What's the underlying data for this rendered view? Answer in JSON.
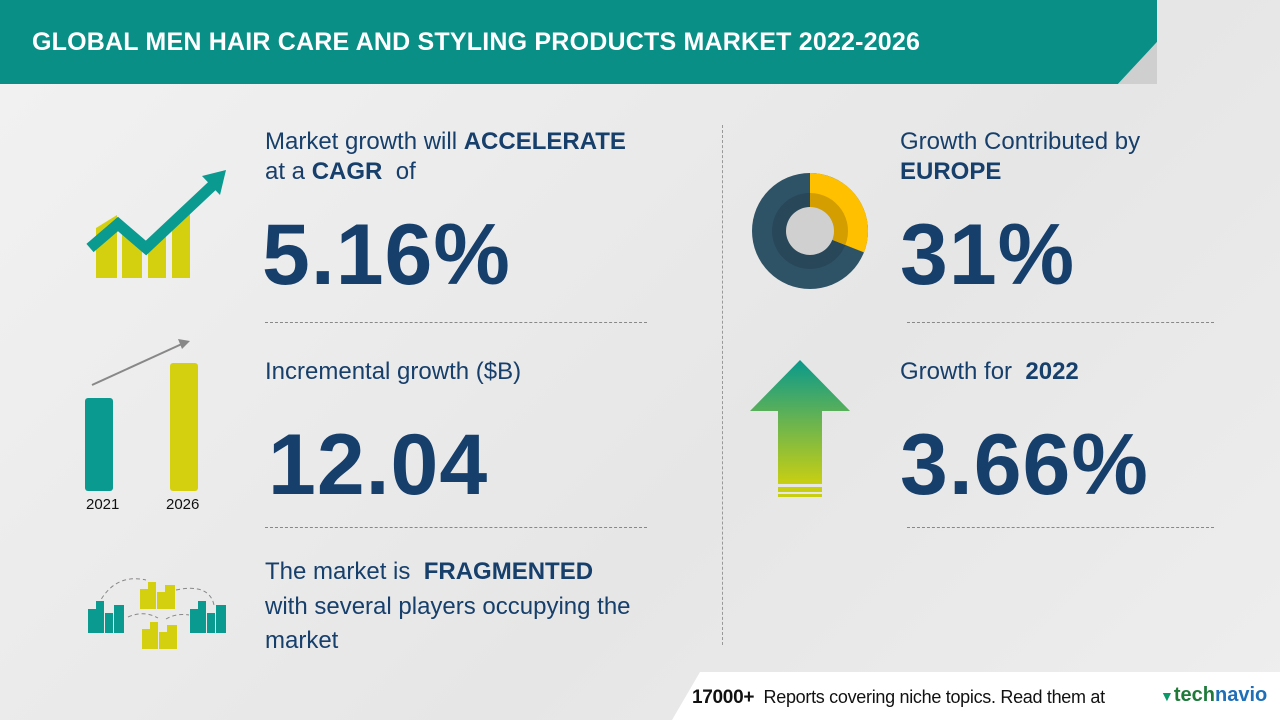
{
  "header": {
    "title": "GLOBAL MEN HAIR CARE AND STYLING PRODUCTS MARKET 2022-2026"
  },
  "cagr": {
    "line1_prefix": "Market growth will",
    "line1_bold": "ACCELERATE",
    "line2_prefix": "at a",
    "line2_bold": "CAGR",
    "line2_suffix": "of",
    "value": "5.16%"
  },
  "incremental": {
    "label": "Incremental growth ($B)",
    "value": "12.04",
    "bar_years": [
      "2021",
      "2026"
    ]
  },
  "fragmented": {
    "prefix": "The market is",
    "bold": "FRAGMENTED",
    "line2": "with several players occupying the",
    "line3": "market"
  },
  "region": {
    "label": "Growth Contributed by",
    "region": "EUROPE",
    "value": "31%",
    "share": 0.31
  },
  "yoy": {
    "label": "Growth for",
    "year": "2022",
    "value": "3.66%"
  },
  "footer": {
    "count": "17000+",
    "text": "Reports covering niche topics. Read them at",
    "brand_a": "tech",
    "brand_b": "navio"
  },
  "colors": {
    "teal": "#0a8f87",
    "yellow": "#d4d00f",
    "navy": "#173f6b",
    "donut_dark": "#2f5366",
    "donut_accent": "#ffc000"
  }
}
